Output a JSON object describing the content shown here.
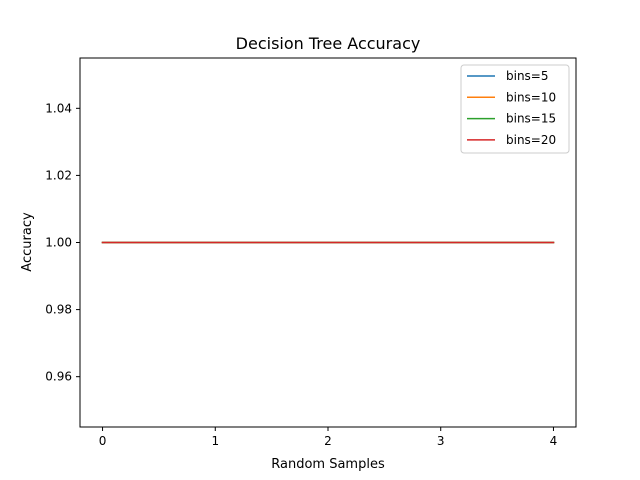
{
  "chart_data": {
    "type": "line",
    "title": "Decision Tree Accuracy",
    "xlabel": "Random Samples",
    "ylabel": "Accuracy",
    "x": [
      0,
      1,
      2,
      3,
      4
    ],
    "xlim": [
      -0.2,
      4.2
    ],
    "ylim": [
      0.945,
      1.055
    ],
    "xticks": [
      0,
      1,
      2,
      3,
      4
    ],
    "xtick_labels": [
      "0",
      "1",
      "2",
      "3",
      "4"
    ],
    "yticks": [
      0.96,
      0.98,
      1.0,
      1.02,
      1.04
    ],
    "ytick_labels": [
      "0.96",
      "0.98",
      "1.00",
      "1.02",
      "1.04"
    ],
    "grid": false,
    "legend_position": "top-right",
    "series": [
      {
        "name": "bins=5",
        "color": "#1f77b4",
        "values": [
          1.0,
          1.0,
          1.0,
          1.0,
          1.0
        ]
      },
      {
        "name": "bins=10",
        "color": "#ff7f0e",
        "values": [
          1.0,
          1.0,
          1.0,
          1.0,
          1.0
        ]
      },
      {
        "name": "bins=15",
        "color": "#2ca02c",
        "values": [
          1.0,
          1.0,
          1.0,
          1.0,
          1.0
        ]
      },
      {
        "name": "bins=20",
        "color": "#d62728",
        "values": [
          1.0,
          1.0,
          1.0,
          1.0,
          1.0
        ]
      }
    ]
  }
}
